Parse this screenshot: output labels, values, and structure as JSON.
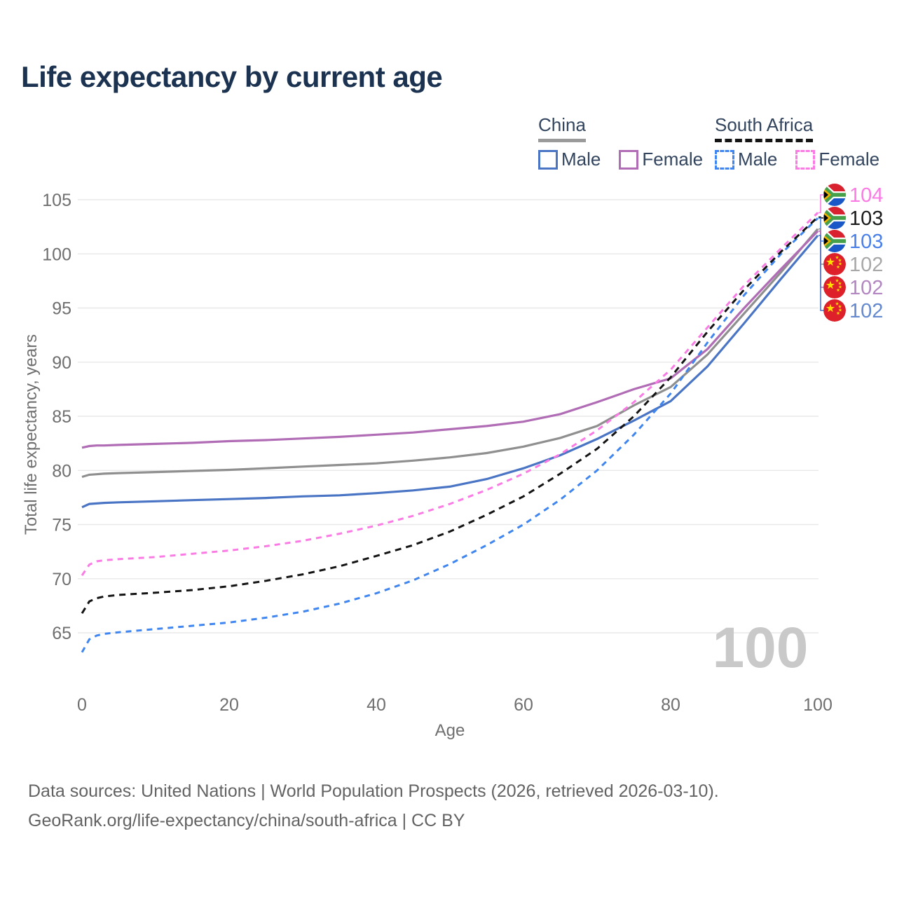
{
  "page": {
    "title": "Life expectancy by current age"
  },
  "legend": {
    "groups": [
      {
        "id": "china",
        "label": "China",
        "line_style": "solid",
        "line_color": "#9a9a9a",
        "items": [
          {
            "label": "Male",
            "color": "#4a74c4",
            "dashed": false
          },
          {
            "label": "Female",
            "color": "#b06cb4",
            "dashed": false
          }
        ]
      },
      {
        "id": "south-africa",
        "label": "South Africa",
        "line_style": "dashed",
        "line_color": "#141414",
        "items": [
          {
            "label": "Male",
            "color": "#3f86f0",
            "dashed": true
          },
          {
            "label": "Female",
            "color": "#fb7be4",
            "dashed": true
          }
        ]
      }
    ]
  },
  "watermark": "100",
  "footer": {
    "line1": "Data sources: United Nations | World Population Prospects (2026, retrieved 2026-03-10).",
    "line2": "GeoRank.org/life-expectancy/china/south-africa | CC BY"
  },
  "chart_data": {
    "type": "line",
    "title": "Life expectancy by current age",
    "xlabel": "Age",
    "ylabel": "Total life expectancy, years",
    "xlim": [
      0,
      100
    ],
    "ylim": [
      63,
      106
    ],
    "xticks": [
      0,
      20,
      40,
      60,
      80,
      100
    ],
    "yticks": [
      65,
      70,
      75,
      80,
      85,
      90,
      95,
      100,
      105
    ],
    "grid": "horizontal-only",
    "legend_position": "top-right",
    "x": [
      0,
      1,
      2,
      3,
      5,
      10,
      15,
      20,
      25,
      30,
      35,
      40,
      45,
      50,
      55,
      60,
      65,
      70,
      75,
      80,
      85,
      90,
      95,
      100
    ],
    "series": [
      {
        "id": "china-total",
        "name": "China (both sexes)",
        "country": "China",
        "flag": "cn",
        "color": "#8f8f8f",
        "label_color": "#a8a8a8",
        "dashed": false,
        "end_label": "102",
        "values": [
          79.4,
          79.6,
          79.65,
          79.7,
          79.75,
          79.85,
          79.95,
          80.05,
          80.2,
          80.35,
          80.5,
          80.65,
          80.9,
          81.2,
          81.6,
          82.2,
          83.0,
          84.1,
          86.0,
          87.7,
          90.7,
          94.5,
          98.3,
          102.3
        ]
      },
      {
        "id": "china-male",
        "name": "China Male",
        "country": "China",
        "flag": "cn",
        "color": "#4a74c4",
        "label_color": "#6489cf",
        "dashed": false,
        "end_label": "102",
        "values": [
          76.6,
          76.9,
          76.95,
          77.0,
          77.05,
          77.15,
          77.25,
          77.35,
          77.45,
          77.6,
          77.7,
          77.9,
          78.15,
          78.5,
          79.2,
          80.2,
          81.4,
          82.9,
          84.6,
          86.4,
          89.6,
          93.6,
          97.7,
          101.7
        ]
      },
      {
        "id": "china-female",
        "name": "China Female",
        "country": "China",
        "flag": "cn",
        "color": "#b06cb4",
        "label_color": "#b286c0",
        "dashed": false,
        "end_label": "102",
        "values": [
          82.1,
          82.25,
          82.3,
          82.3,
          82.35,
          82.45,
          82.55,
          82.7,
          82.8,
          82.95,
          83.1,
          83.3,
          83.5,
          83.8,
          84.1,
          84.5,
          85.2,
          86.3,
          87.5,
          88.5,
          91.2,
          95.0,
          98.6,
          102.1
        ]
      },
      {
        "id": "south-africa-male",
        "name": "South Africa Male",
        "country": "South Africa",
        "flag": "za",
        "color": "#3f86f0",
        "label_color": "#4a80e8",
        "dashed": true,
        "end_label": "103",
        "values": [
          63.2,
          64.4,
          64.75,
          64.9,
          65.05,
          65.35,
          65.65,
          65.95,
          66.4,
          66.95,
          67.7,
          68.65,
          69.85,
          71.35,
          73.1,
          75.0,
          77.3,
          80.0,
          83.3,
          87.1,
          91.8,
          96.2,
          100.0,
          103.3
        ]
      },
      {
        "id": "south-africa-total",
        "name": "South Africa (both sexes)",
        "country": "South Africa",
        "flag": "za",
        "color": "#141414",
        "label_color": "#1a1a1a",
        "dashed": true,
        "end_label": "103",
        "values": [
          66.8,
          67.9,
          68.2,
          68.35,
          68.5,
          68.7,
          68.95,
          69.3,
          69.8,
          70.4,
          71.15,
          72.1,
          73.1,
          74.35,
          75.9,
          77.6,
          79.7,
          82.0,
          85.0,
          88.6,
          92.8,
          96.7,
          100.2,
          103.4
        ]
      },
      {
        "id": "south-africa-female",
        "name": "South Africa Female",
        "country": "South Africa",
        "flag": "za",
        "color": "#fb7be4",
        "label_color": "#fb7be4",
        "dashed": true,
        "end_label": "104",
        "values": [
          70.3,
          71.3,
          71.6,
          71.7,
          71.8,
          72.0,
          72.3,
          72.6,
          73.0,
          73.5,
          74.15,
          74.9,
          75.8,
          76.9,
          78.2,
          79.7,
          81.5,
          83.7,
          86.3,
          89.3,
          93.2,
          97.1,
          100.5,
          103.8
        ]
      }
    ]
  }
}
